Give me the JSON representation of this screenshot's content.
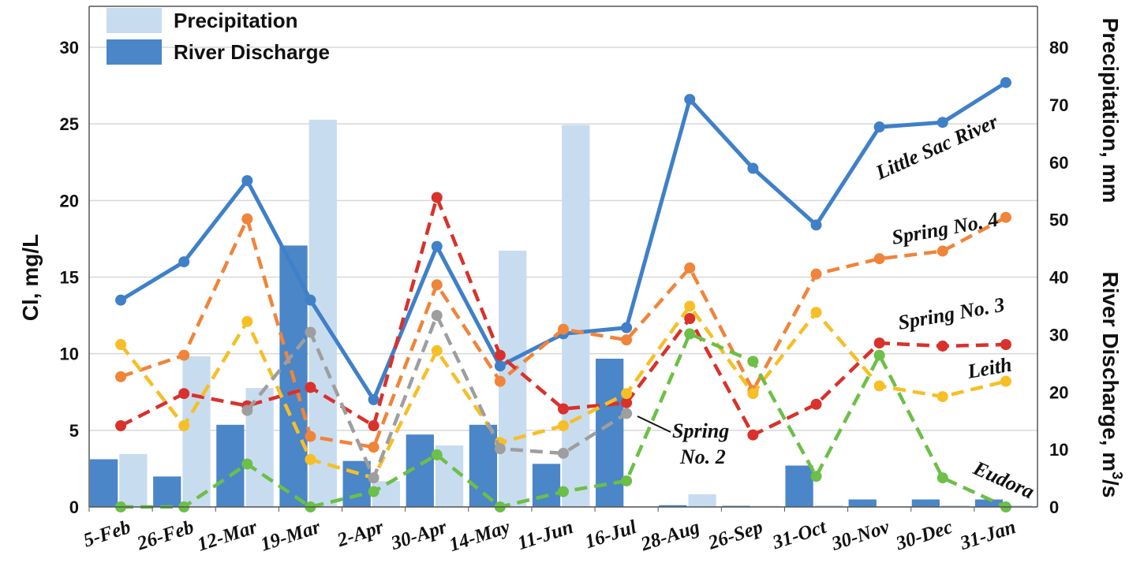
{
  "chart_data": {
    "type": "bar+line",
    "title": "",
    "categories": [
      "5-Feb",
      "26-Feb",
      "12-Mar",
      "19-Mar",
      "2-Apr",
      "30-Apr",
      "14-May",
      "11-Jun",
      "16-Jul",
      "28-Aug",
      "26-Sep",
      "31-Oct",
      "30-Nov",
      "30-Dec",
      "31-Jan"
    ],
    "y_left": {
      "label": "Cl, mg/L",
      "ylim": [
        0,
        30
      ],
      "ticks": [
        "0",
        "5",
        "10",
        "15",
        "20",
        "25",
        "30"
      ]
    },
    "y_right": {
      "label_top": "Precipitation, mm",
      "label_bottom": "River Discharge, m",
      "label_bottom_sup": "3",
      "label_bottom_suffix": "/s",
      "ylim": [
        0,
        80
      ],
      "ticks": [
        "0",
        "10",
        "20",
        "30",
        "40",
        "50",
        "60",
        "70",
        "80"
      ]
    },
    "bars": [
      {
        "name": "River Discharge",
        "color": "#4a86c8",
        "axis": "right",
        "values": [
          8.3,
          5.3,
          14.3,
          45.5,
          8.0,
          12.6,
          14.3,
          7.5,
          25.8,
          0.3,
          0.2,
          7.2,
          1.3,
          1.3,
          1.3
        ]
      },
      {
        "name": "Precipitation",
        "color": "#c8dcf0",
        "axis": "right",
        "values": [
          9.2,
          26.2,
          20.7,
          67.4,
          4.5,
          10.7,
          44.6,
          66.5,
          0,
          2.2,
          0.2,
          0.3,
          0,
          0.3,
          0.3
        ]
      }
    ],
    "series": [
      {
        "name": "Little Sac River",
        "color": "#3f80c8",
        "style": "solid",
        "values": [
          13.5,
          16.0,
          21.3,
          13.5,
          7.0,
          17.0,
          9.2,
          11.3,
          11.7,
          26.6,
          22.1,
          18.4,
          24.8,
          25.1,
          27.7
        ]
      },
      {
        "name": "Spring No. 4",
        "color": "#f0843a",
        "style": "dashed",
        "values": [
          8.5,
          9.9,
          18.8,
          4.6,
          3.9,
          14.5,
          8.2,
          11.6,
          10.9,
          15.6,
          7.6,
          15.2,
          16.2,
          16.7,
          18.9
        ]
      },
      {
        "name": "Spring No. 3",
        "color": "#d9312b",
        "style": "dashed",
        "values": [
          5.3,
          7.4,
          6.6,
          7.8,
          5.3,
          20.2,
          9.9,
          6.4,
          6.8,
          12.3,
          4.7,
          6.7,
          10.7,
          10.5,
          10.6
        ]
      },
      {
        "name": "Leith",
        "color": "#f6bf26",
        "style": "dashed",
        "values": [
          10.6,
          5.3,
          12.1,
          3.1,
          1.9,
          10.2,
          4.2,
          5.3,
          7.4,
          13.1,
          7.4,
          12.7,
          7.9,
          7.2,
          8.2
        ]
      },
      {
        "name": "Spring No. 2",
        "color": "#9e9e9e",
        "style": "dashed",
        "values": [
          null,
          null,
          6.3,
          11.4,
          1.9,
          12.5,
          3.8,
          3.5,
          6.1,
          null,
          null,
          null,
          null,
          null,
          null
        ]
      },
      {
        "name": "Eudora",
        "color": "#6cbf47",
        "style": "dashed",
        "values": [
          0,
          0,
          2.8,
          0,
          1.0,
          3.4,
          0,
          1.0,
          1.7,
          11.3,
          9.5,
          2.0,
          9.9,
          1.9,
          0
        ]
      }
    ],
    "annotations": {
      "little_sac": "Little Sac River",
      "spring4": "Spring No. 4",
      "spring3": "Spring No. 3",
      "leith": "Leith",
      "spring2_line1": "Spring",
      "spring2_line2": "No. 2",
      "eudora": "Eudora"
    },
    "legend": {
      "position": "top-left",
      "items": [
        "Precipitation",
        "River Discharge"
      ]
    },
    "grid": true
  }
}
